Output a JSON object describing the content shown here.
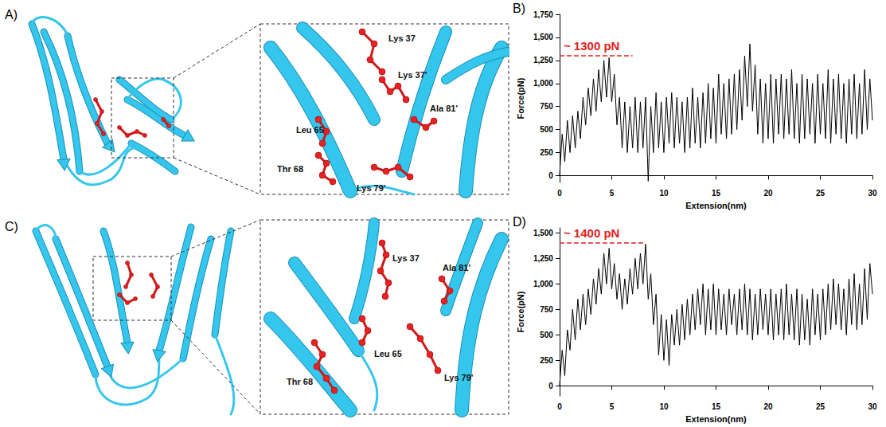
{
  "structures": [
    {
      "letter": "A)",
      "residue_labels": [
        "Lys 37",
        "Lys 37'",
        "Leu 65",
        "Ala 81'",
        "Thr 68",
        "Lys 79'"
      ]
    },
    {
      "letter": "C)",
      "residue_labels": [
        "Lys 37",
        "Ala 81'",
        "Leu 65",
        "Thr 68",
        "Lys 79'"
      ]
    }
  ],
  "chart_data": [
    {
      "panel": "B)",
      "type": "line",
      "color": "#000000",
      "grid": false,
      "x_label": "Extension(nm)",
      "y_label": "Force(pN)",
      "xlim": [
        0,
        30
      ],
      "xticks": [
        0,
        5,
        10,
        15,
        20,
        25,
        30
      ],
      "ylim": [
        -75,
        1750
      ],
      "yticks": [
        0,
        250,
        500,
        750,
        1000,
        1250,
        1500,
        1750
      ],
      "annotation": {
        "text": "~ 1300 pN",
        "value": 1300,
        "x": [
          0,
          7
        ],
        "color": "#e02020"
      },
      "x": [
        0,
        0.25,
        0.5,
        0.75,
        1,
        1.25,
        1.5,
        1.75,
        2,
        2.25,
        2.5,
        2.75,
        3,
        3.25,
        3.5,
        3.75,
        4,
        4.25,
        4.5,
        4.75,
        5,
        5.25,
        5.5,
        5.75,
        6,
        6.25,
        6.5,
        6.75,
        7,
        7.25,
        7.5,
        7.75,
        8,
        8.25,
        8.5,
        8.75,
        9,
        9.25,
        9.5,
        9.75,
        10,
        10.25,
        10.5,
        10.75,
        11,
        11.25,
        11.5,
        11.75,
        12,
        12.25,
        12.5,
        12.75,
        13,
        13.25,
        13.5,
        13.75,
        14,
        14.25,
        14.5,
        14.75,
        15,
        15.25,
        15.5,
        15.75,
        16,
        16.25,
        16.5,
        16.75,
        17,
        17.25,
        17.5,
        17.75,
        18,
        18.25,
        18.5,
        18.75,
        19,
        19.25,
        19.5,
        19.75,
        20,
        20.25,
        20.5,
        20.75,
        21,
        21.25,
        21.5,
        21.75,
        22,
        22.25,
        22.5,
        22.75,
        23,
        23.25,
        23.5,
        23.75,
        24,
        24.25,
        24.5,
        24.75,
        25,
        25.25,
        25.5,
        25.75,
        26,
        26.25,
        26.5,
        26.75,
        27,
        27.25,
        27.5,
        27.75,
        28,
        28.25,
        28.5,
        28.75,
        29,
        29.25,
        29.5,
        29.75,
        30
      ],
      "values": [
        0,
        450,
        150,
        600,
        250,
        650,
        300,
        700,
        400,
        850,
        550,
        950,
        650,
        1050,
        700,
        1150,
        800,
        1250,
        850,
        1280,
        800,
        1100,
        550,
        850,
        300,
        800,
        250,
        750,
        300,
        850,
        250,
        800,
        300,
        850,
        -60,
        750,
        250,
        900,
        300,
        800,
        250,
        850,
        350,
        900,
        300,
        850,
        350,
        800,
        250,
        850,
        300,
        950,
        350,
        850,
        300,
        900,
        350,
        1000,
        400,
        950,
        350,
        1100,
        450,
        1000,
        400,
        1050,
        450,
        1100,
        500,
        1150,
        600,
        1300,
        750,
        1430,
        700,
        1200,
        450,
        1050,
        350,
        1000,
        400,
        1100,
        350,
        1050,
        450,
        1100,
        400,
        1050,
        450,
        1150,
        400,
        1000,
        350,
        1100,
        400,
        1050,
        450,
        1000,
        350,
        1100,
        450,
        1000,
        400,
        1150,
        350,
        1050,
        450,
        1100,
        400,
        1000,
        350,
        1050,
        450,
        1100,
        400,
        1000,
        450,
        1150,
        500,
        1050,
        600
      ]
    },
    {
      "panel": "D)",
      "type": "line",
      "color": "#000000",
      "grid": false,
      "x_label": "Extension(nm)",
      "y_label": "Force(pN)",
      "xlim": [
        0,
        30
      ],
      "xticks": [
        0,
        5,
        10,
        15,
        20,
        25,
        30
      ],
      "ylim": [
        -100,
        1550
      ],
      "yticks": [
        0,
        250,
        500,
        750,
        1000,
        1250,
        1500
      ],
      "annotation": {
        "text": "~ 1400 pN",
        "value": 1400,
        "x": [
          0,
          8
        ],
        "color": "#e02020"
      },
      "x": [
        0,
        0.25,
        0.5,
        0.75,
        1,
        1.25,
        1.5,
        1.75,
        2,
        2.25,
        2.5,
        2.75,
        3,
        3.25,
        3.5,
        3.75,
        4,
        4.25,
        4.5,
        4.75,
        5,
        5.25,
        5.5,
        5.75,
        6,
        6.25,
        6.5,
        6.75,
        7,
        7.25,
        7.5,
        7.75,
        8,
        8.25,
        8.5,
        8.75,
        9,
        9.25,
        9.5,
        9.75,
        10,
        10.25,
        10.5,
        10.75,
        11,
        11.25,
        11.5,
        11.75,
        12,
        12.25,
        12.5,
        12.75,
        13,
        13.25,
        13.5,
        13.75,
        14,
        14.25,
        14.5,
        14.75,
        15,
        15.25,
        15.5,
        15.75,
        16,
        16.25,
        16.5,
        16.75,
        17,
        17.25,
        17.5,
        17.75,
        18,
        18.25,
        18.5,
        18.75,
        19,
        19.25,
        19.5,
        19.75,
        20,
        20.25,
        20.5,
        20.75,
        21,
        21.25,
        21.5,
        21.75,
        22,
        22.25,
        22.5,
        22.75,
        23,
        23.25,
        23.5,
        23.75,
        24,
        24.25,
        24.5,
        24.75,
        25,
        25.25,
        25.5,
        25.75,
        26,
        26.25,
        26.5,
        26.75,
        27,
        27.25,
        27.5,
        27.75,
        28,
        28.25,
        28.5,
        28.75,
        29,
        29.25,
        29.5,
        29.75,
        30
      ],
      "values": [
        0,
        350,
        100,
        550,
        350,
        750,
        450,
        850,
        550,
        900,
        600,
        950,
        700,
        1050,
        800,
        1150,
        900,
        1300,
        1000,
        1350,
        950,
        1200,
        850,
        1100,
        750,
        1050,
        800,
        1150,
        900,
        1250,
        950,
        1300,
        1000,
        1390,
        850,
        1100,
        600,
        900,
        300,
        700,
        250,
        650,
        200,
        700,
        400,
        750,
        400,
        800,
        450,
        850,
        500,
        900,
        550,
        950,
        600,
        1000,
        500,
        950,
        550,
        1000,
        500,
        950,
        550,
        900,
        500,
        950,
        600,
        900,
        500,
        950,
        550,
        1000,
        500,
        950,
        450,
        900,
        500,
        950,
        550,
        900,
        500,
        950,
        450,
        900,
        500,
        950,
        450,
        1000,
        500,
        900,
        450,
        950,
        400,
        900,
        450,
        850,
        400,
        950,
        500,
        900,
        450,
        950,
        500,
        1000,
        550,
        1050,
        600,
        1000,
        550,
        950,
        500,
        1050,
        600,
        1100,
        550,
        1000,
        600,
        1150,
        650,
        1200,
        900
      ]
    }
  ]
}
